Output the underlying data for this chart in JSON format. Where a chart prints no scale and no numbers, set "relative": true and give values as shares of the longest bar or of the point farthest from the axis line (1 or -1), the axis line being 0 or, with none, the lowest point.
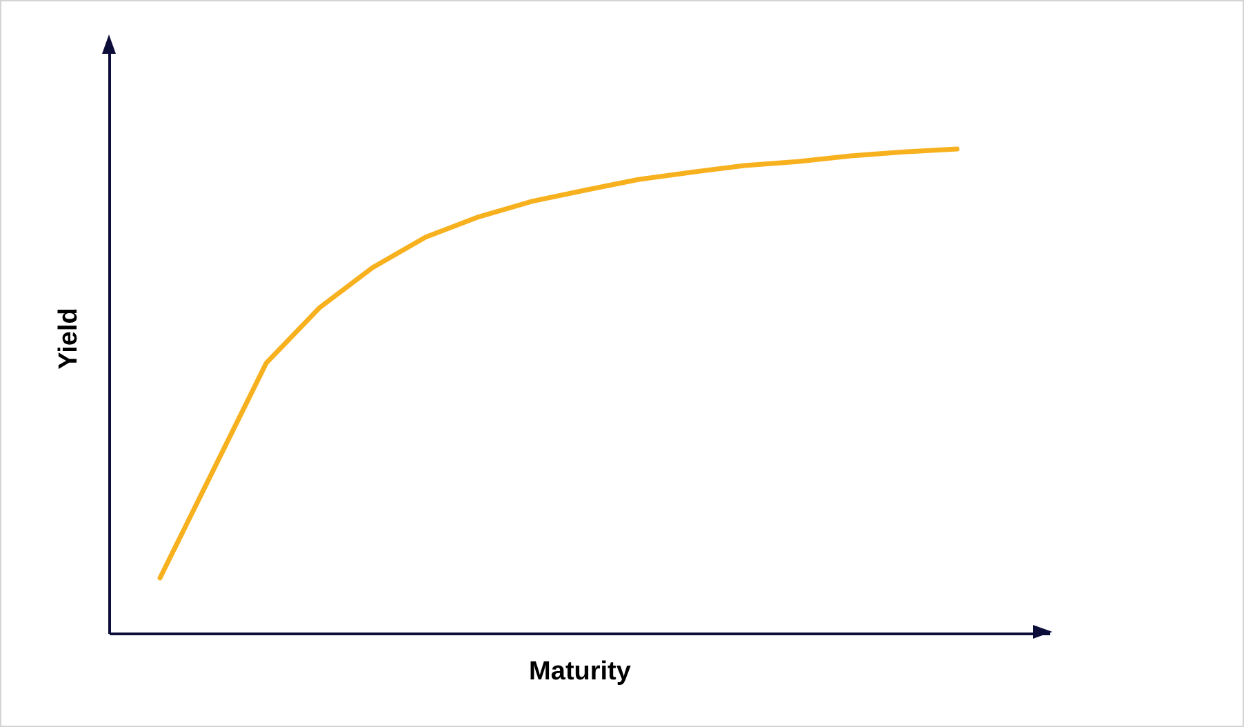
{
  "chart_data": {
    "type": "line",
    "xlabel": "Maturity",
    "ylabel": "Yield",
    "relative": true,
    "grid": false,
    "legend": false,
    "marker": "none",
    "line_style": "solid",
    "categories": [
      null,
      null,
      null,
      null,
      null,
      null,
      null,
      null,
      null,
      null,
      null,
      null,
      null,
      null,
      null,
      null
    ],
    "series": [
      {
        "color": "#f7b11e",
        "values": [
          0.114,
          0.336,
          0.558,
          0.672,
          0.755,
          0.818,
          0.86,
          0.892,
          0.915,
          0.937,
          0.952,
          0.966,
          0.974,
          0.986,
          0.994,
          1
        ]
      }
    ]
  }
}
